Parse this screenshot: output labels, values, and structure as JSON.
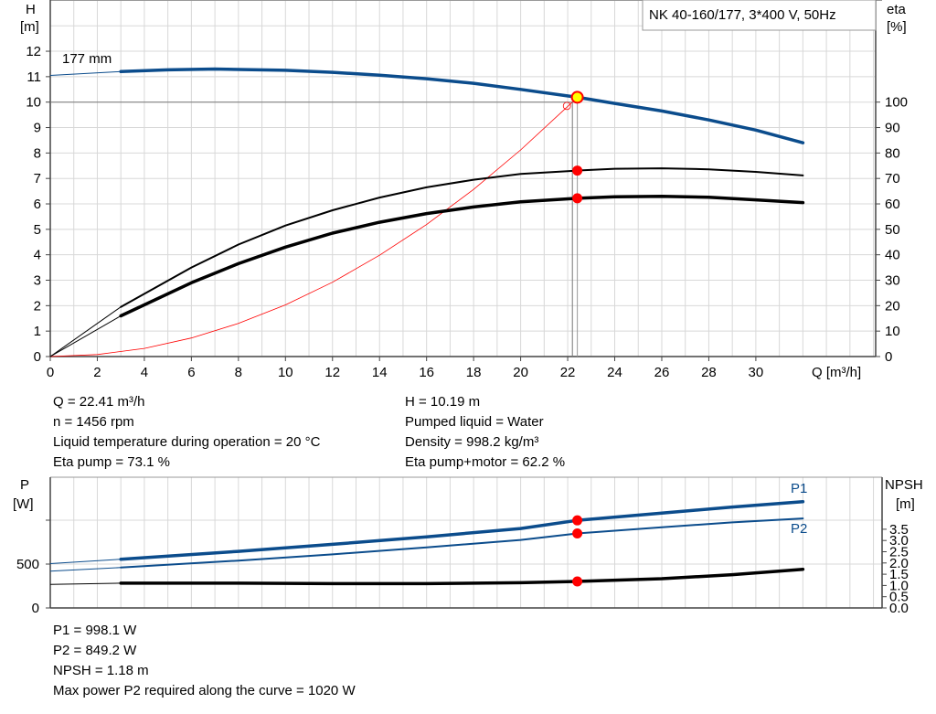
{
  "title": "NK 40-160/177, 3*400 V, 50Hz",
  "impeller_label": "177 mm",
  "colors": {
    "head": "#0b4c8c",
    "eta": "#000000",
    "system": "#ff0000",
    "power": "#0b4c8c",
    "npsh": "#000000",
    "marker": "#ff0000",
    "duty_marker": "#ffff00",
    "grid": "#d8d8d8"
  },
  "info_top": {
    "left": [
      "Q = 22.41 m³/h",
      "n = 1456 rpm",
      "Liquid temperature during operation = 20 °C",
      "Eta pump = 73.1 %"
    ],
    "right": [
      "H = 10.19 m",
      "Pumped liquid = Water",
      "Density = 998.2 kg/m³",
      "Eta pump+motor = 62.2 %"
    ]
  },
  "info_bottom": [
    "P1 = 998.1 W",
    "P2 = 849.2 W",
    "NPSH = 1.18 m",
    "Max power P2 required along the curve = 1020 W"
  ],
  "chart_data": [
    {
      "type": "line",
      "title": "NK 40-160/177, 3*400 V, 50Hz",
      "xlabel": "Q [m³/h]",
      "ylabel": "H\n[m]",
      "ylabel_right": "eta\n[%]",
      "xlim": [
        0,
        35
      ],
      "ylim": [
        0,
        13.9
      ],
      "ylim_right": [
        0,
        139
      ],
      "x_ticks": [
        0,
        2,
        4,
        6,
        8,
        10,
        12,
        14,
        16,
        18,
        20,
        22,
        24,
        26,
        28,
        30
      ],
      "y_ticks": [
        0,
        1,
        2,
        3,
        4,
        5,
        6,
        7,
        8,
        9,
        10,
        11,
        12
      ],
      "y_right_ticks": [
        0,
        10,
        20,
        30,
        40,
        50,
        60,
        70,
        80,
        90,
        100
      ],
      "grid": true,
      "duty_point": {
        "Q": 22.41,
        "H": 10.19,
        "eta_pump": 73.1,
        "eta_pump_motor": 62.2
      },
      "series": [
        {
          "name": "177 mm",
          "axis": "left",
          "x": [
            0,
            3,
            5,
            7,
            10,
            12,
            14,
            16,
            18,
            20,
            22.41,
            24,
            26,
            28,
            30,
            32
          ],
          "y": [
            11.05,
            11.2,
            11.27,
            11.3,
            11.25,
            11.17,
            11.06,
            10.92,
            10.74,
            10.5,
            10.19,
            9.95,
            9.65,
            9.3,
            8.9,
            8.4
          ]
        },
        {
          "axis": "right",
          "x": [
            0,
            3,
            6,
            8,
            10,
            12,
            14,
            16,
            18,
            20,
            22.41,
            24,
            26,
            28,
            30,
            32
          ],
          "y": [
            0,
            19.5,
            35,
            44,
            51.5,
            57.5,
            62.5,
            66.5,
            69.5,
            71.8,
            73.1,
            73.8,
            74,
            73.6,
            72.6,
            71.2
          ]
        },
        {
          "axis": "right",
          "x": [
            0,
            3,
            6,
            8,
            10,
            12,
            14,
            16,
            18,
            20,
            22.41,
            24,
            26,
            28,
            30,
            32
          ],
          "y": [
            0,
            16,
            29,
            36.5,
            43,
            48.5,
            52.8,
            56.2,
            58.8,
            60.8,
            62.2,
            62.8,
            63,
            62.6,
            61.6,
            60.5
          ]
        },
        {
          "axis": "left",
          "x": [
            0,
            2,
            4,
            6,
            8,
            10,
            12,
            14,
            16,
            18,
            20,
            22.2
          ],
          "y": [
            0,
            0.08,
            0.32,
            0.73,
            1.3,
            2.03,
            2.92,
            3.98,
            5.19,
            6.57,
            8.12,
            10.0
          ]
        }
      ]
    },
    {
      "type": "line",
      "ylabel": "P\n[W]",
      "ylabel_right": "NPSH\n[m]",
      "xlim": [
        0,
        35
      ],
      "ylim": [
        0,
        1490
      ],
      "ylim_right": [
        0,
        5.8
      ],
      "y_ticks": [
        0,
        500,
        1000
      ],
      "y_tick_labels": [
        "0",
        "500",
        ""
      ],
      "y_right_ticks": [
        0.0,
        0.5,
        1.0,
        1.5,
        2.0,
        2.5,
        3.0,
        3.5
      ],
      "grid": true,
      "duty_point": {
        "Q": 22.41,
        "P1": 998.1,
        "P2": 849.2,
        "NPSH": 1.18
      },
      "series": [
        {
          "name": "P1",
          "axis": "left",
          "x": [
            0,
            3,
            8,
            12,
            16,
            20,
            22.41,
            26,
            29,
            32
          ],
          "y": [
            505,
            555,
            645,
            725,
            810,
            905,
            998,
            1080,
            1150,
            1210
          ]
        },
        {
          "name": "P2",
          "axis": "left",
          "x": [
            0,
            3,
            8,
            12,
            16,
            20,
            22.41,
            26,
            29,
            32
          ],
          "y": [
            420,
            460,
            540,
            610,
            690,
            775,
            849,
            920,
            975,
            1020
          ]
        },
        {
          "axis": "right",
          "x": [
            0,
            3,
            8,
            12,
            16,
            20,
            22.41,
            26,
            29,
            32
          ],
          "y": [
            1.05,
            1.1,
            1.1,
            1.08,
            1.08,
            1.12,
            1.18,
            1.3,
            1.48,
            1.72
          ]
        }
      ]
    }
  ]
}
